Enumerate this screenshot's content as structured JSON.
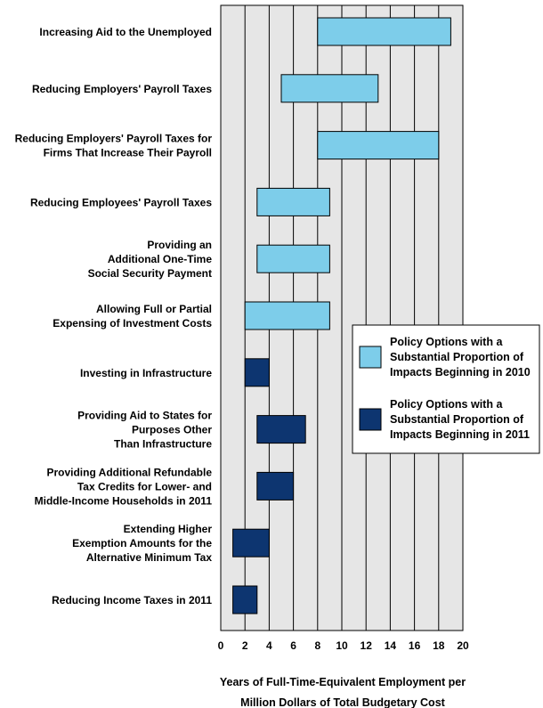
{
  "chart_data": {
    "type": "bar",
    "orientation": "horizontal-range",
    "xlim": [
      0,
      20
    ],
    "xticks": [
      0,
      2,
      4,
      6,
      8,
      10,
      12,
      14,
      16,
      18,
      20
    ],
    "xlabel": [
      "Years of Full-Time-Equivalent Employment per",
      "Million Dollars of Total Budgetary Cost"
    ],
    "grid": "vertical",
    "legend_position": "right",
    "colors": {
      "beginning_2010": "#7dcdea",
      "beginning_2011": "#0d3570",
      "plot_background": "#e6e6e6"
    },
    "legend": [
      {
        "series": "beginning_2010",
        "lines": [
          "Policy Options with a",
          "Substantial Proportion of",
          "Impacts Beginning in 2010"
        ]
      },
      {
        "series": "beginning_2011",
        "lines": [
          "Policy Options with a",
          "Substantial Proportion of",
          "Impacts Beginning in 2011"
        ]
      }
    ],
    "categories": [
      {
        "label": [
          "Increasing Aid to the Unemployed"
        ],
        "low": 8,
        "high": 19,
        "series": "beginning_2010"
      },
      {
        "label": [
          "Reducing Employers' Payroll Taxes"
        ],
        "low": 5,
        "high": 13,
        "series": "beginning_2010"
      },
      {
        "label": [
          "Reducing Employers' Payroll Taxes for",
          "Firms That Increase Their Payroll"
        ],
        "low": 8,
        "high": 18,
        "series": "beginning_2010"
      },
      {
        "label": [
          "Reducing Employees' Payroll Taxes"
        ],
        "low": 3,
        "high": 9,
        "series": "beginning_2010"
      },
      {
        "label": [
          "Providing an",
          "Additional One-Time",
          "Social Security Payment"
        ],
        "low": 3,
        "high": 9,
        "series": "beginning_2010"
      },
      {
        "label": [
          "Allowing Full or Partial",
          "Expensing of Investment Costs"
        ],
        "low": 2,
        "high": 9,
        "series": "beginning_2010"
      },
      {
        "label": [
          "Investing in Infrastructure"
        ],
        "low": 2,
        "high": 4,
        "series": "beginning_2011"
      },
      {
        "label": [
          "Providing Aid to States for",
          "Purposes Other",
          "Than Infrastructure"
        ],
        "low": 3,
        "high": 7,
        "series": "beginning_2011"
      },
      {
        "label": [
          "Providing Additional Refundable",
          "Tax Credits for Lower- and",
          "Middle-Income Households in 2011"
        ],
        "low": 3,
        "high": 6,
        "series": "beginning_2011"
      },
      {
        "label": [
          "Extending Higher",
          "Exemption Amounts for the",
          "Alternative Minimum Tax"
        ],
        "low": 1,
        "high": 4,
        "series": "beginning_2011"
      },
      {
        "label": [
          "Reducing Income Taxes in 2011"
        ],
        "low": 1,
        "high": 3,
        "series": "beginning_2011"
      }
    ]
  }
}
